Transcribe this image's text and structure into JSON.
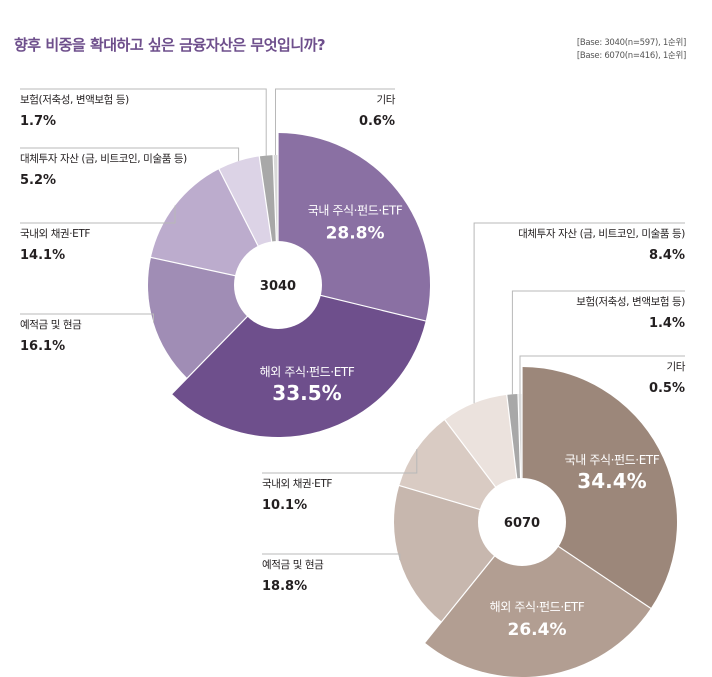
{
  "title": "향후 비중을 확대하고 싶은 금융자산은 무엇입니까?",
  "bases": [
    "[Base: 3040(n=597), 1순위]",
    "[Base: 6070(n=416), 1순위]"
  ],
  "chart_data": [
    {
      "type": "pie",
      "center_label": "3040",
      "slices": [
        {
          "name": "국내 주식·펀드·ETF",
          "value": 28.8,
          "value_label": "28.8%",
          "color": "#8a70a3"
        },
        {
          "name": "해외 주식·펀드·ETF",
          "value": 33.5,
          "value_label": "33.5%",
          "color": "#6e4f8c"
        },
        {
          "name": "예적금 및 현금",
          "value": 16.1,
          "value_label": "16.1%",
          "color": "#a08db5"
        },
        {
          "name": "국내외 채권·ETF",
          "value": 14.1,
          "value_label": "14.1%",
          "color": "#bcaccd"
        },
        {
          "name": "대체투자 자산 (금, 비트코인, 미술품 등)",
          "value": 5.2,
          "value_label": "5.2%",
          "color": "#dcd3e6"
        },
        {
          "name": "보험(저축성, 변액보험 등)",
          "value": 1.7,
          "value_label": "1.7%",
          "color": "#a8a8a8"
        },
        {
          "name": "기타",
          "value": 0.6,
          "value_label": "0.6%",
          "color": "#d8d8d8"
        }
      ]
    },
    {
      "type": "pie",
      "center_label": "6070",
      "slices": [
        {
          "name": "국내 주식·펀드·ETF",
          "value": 34.4,
          "value_label": "34.4%",
          "color": "#9c877a"
        },
        {
          "name": "해외 주식·펀드·ETF",
          "value": 26.4,
          "value_label": "26.4%",
          "color": "#b29e92"
        },
        {
          "name": "예적금 및 현금",
          "value": 18.8,
          "value_label": "18.8%",
          "color": "#c7b7ae"
        },
        {
          "name": "국내외 채권·ETF",
          "value": 10.1,
          "value_label": "10.1%",
          "color": "#d9cbc3"
        },
        {
          "name": "대체투자 자산 (금, 비트코인, 미술품 등)",
          "value": 8.4,
          "value_label": "8.4%",
          "color": "#ebe2dd"
        },
        {
          "name": "보험(저축성, 변액보험 등)",
          "value": 1.4,
          "value_label": "1.4%",
          "color": "#a8a8a8"
        },
        {
          "name": "기타",
          "value": 0.5,
          "value_label": "0.5%",
          "color": "#d8d8d8"
        }
      ]
    }
  ]
}
